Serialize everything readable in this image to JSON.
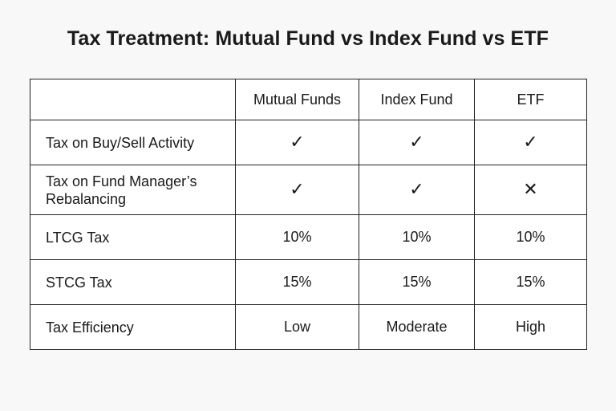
{
  "title": "Tax Treatment: Mutual Fund vs Index Fund vs ETF",
  "table": {
    "headers": [
      "",
      "Mutual Funds",
      "Index Fund",
      "ETF"
    ],
    "rows": [
      {
        "label": "Tax on Buy/Sell Activity",
        "values": [
          "✓",
          "✓",
          "✓"
        ]
      },
      {
        "label": "Tax on Fund Manager’s Rebalancing",
        "values": [
          "✓",
          "✓",
          "✕"
        ]
      },
      {
        "label": "LTCG Tax",
        "values": [
          "10%",
          "10%",
          "10%"
        ]
      },
      {
        "label": "STCG Tax",
        "values": [
          "15%",
          "15%",
          "15%"
        ]
      },
      {
        "label": "Tax Efficiency",
        "values": [
          "Low",
          "Moderate",
          "High"
        ]
      }
    ]
  }
}
